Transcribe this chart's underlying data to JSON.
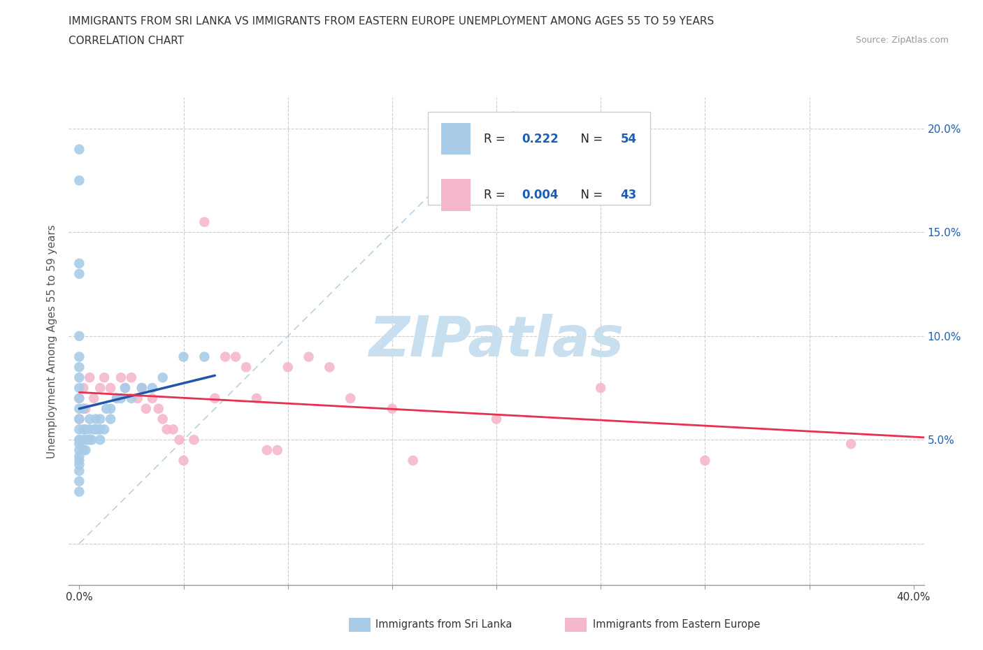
{
  "title_line1": "IMMIGRANTS FROM SRI LANKA VS IMMIGRANTS FROM EASTERN EUROPE UNEMPLOYMENT AMONG AGES 55 TO 59 YEARS",
  "title_line2": "CORRELATION CHART",
  "source": "Source: ZipAtlas.com",
  "ylabel": "Unemployment Among Ages 55 to 59 years",
  "xlim": [
    -0.005,
    0.405
  ],
  "ylim": [
    -0.02,
    0.215
  ],
  "xticks": [
    0.0,
    0.05,
    0.1,
    0.15,
    0.2,
    0.25,
    0.3,
    0.35,
    0.4
  ],
  "yticks": [
    0.0,
    0.05,
    0.1,
    0.15,
    0.2
  ],
  "sri_lanka_R": 0.222,
  "sri_lanka_N": 54,
  "eastern_europe_R": 0.004,
  "eastern_europe_N": 43,
  "sri_lanka_color": "#a8cce8",
  "eastern_europe_color": "#f5b8cb",
  "sri_lanka_line_color": "#2255aa",
  "eastern_europe_line_color": "#e83050",
  "legend_text_color": "#1a5fb4",
  "watermark_color": "#c8dff0",
  "sri_lanka_x": [
    0.0,
    0.0,
    0.0,
    0.0,
    0.0,
    0.0,
    0.0,
    0.0,
    0.0,
    0.0,
    0.0,
    0.0,
    0.0,
    0.0,
    0.0,
    0.0,
    0.0,
    0.0,
    0.0,
    0.0,
    0.0,
    0.0,
    0.002,
    0.002,
    0.002,
    0.002,
    0.003,
    0.003,
    0.003,
    0.004,
    0.005,
    0.005,
    0.005,
    0.006,
    0.007,
    0.008,
    0.008,
    0.009,
    0.01,
    0.01,
    0.01,
    0.012,
    0.013,
    0.015,
    0.015,
    0.018,
    0.02,
    0.022,
    0.025,
    0.03,
    0.035,
    0.04,
    0.05,
    0.06
  ],
  "sri_lanka_y": [
    0.19,
    0.175,
    0.135,
    0.13,
    0.1,
    0.09,
    0.085,
    0.08,
    0.075,
    0.07,
    0.065,
    0.06,
    0.055,
    0.05,
    0.048,
    0.045,
    0.042,
    0.04,
    0.038,
    0.035,
    0.03,
    0.025,
    0.065,
    0.055,
    0.05,
    0.045,
    0.055,
    0.05,
    0.045,
    0.05,
    0.06,
    0.055,
    0.05,
    0.05,
    0.055,
    0.06,
    0.055,
    0.055,
    0.06,
    0.055,
    0.05,
    0.055,
    0.065,
    0.065,
    0.06,
    0.07,
    0.07,
    0.075,
    0.07,
    0.075,
    0.075,
    0.08,
    0.09,
    0.09
  ],
  "eastern_europe_x": [
    0.0,
    0.0,
    0.0,
    0.002,
    0.003,
    0.005,
    0.007,
    0.01,
    0.012,
    0.015,
    0.018,
    0.02,
    0.022,
    0.025,
    0.028,
    0.03,
    0.032,
    0.035,
    0.038,
    0.04,
    0.042,
    0.045,
    0.048,
    0.05,
    0.055,
    0.06,
    0.065,
    0.07,
    0.075,
    0.08,
    0.085,
    0.09,
    0.095,
    0.1,
    0.11,
    0.12,
    0.13,
    0.15,
    0.16,
    0.2,
    0.25,
    0.3,
    0.37
  ],
  "eastern_europe_y": [
    0.07,
    0.06,
    0.05,
    0.075,
    0.065,
    0.08,
    0.07,
    0.075,
    0.08,
    0.075,
    0.07,
    0.08,
    0.075,
    0.08,
    0.07,
    0.075,
    0.065,
    0.07,
    0.065,
    0.06,
    0.055,
    0.055,
    0.05,
    0.04,
    0.05,
    0.155,
    0.07,
    0.09,
    0.09,
    0.085,
    0.07,
    0.045,
    0.045,
    0.085,
    0.09,
    0.085,
    0.07,
    0.065,
    0.04,
    0.06,
    0.075,
    0.04,
    0.048
  ]
}
